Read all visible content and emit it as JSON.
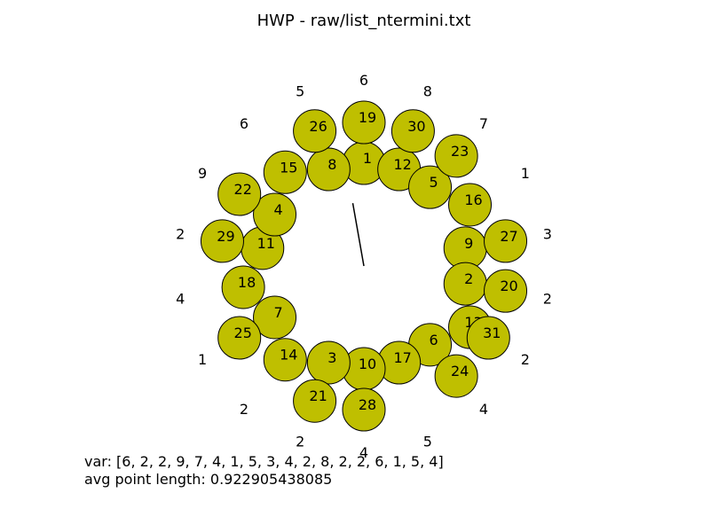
{
  "header": {
    "title": "HWP - raw/list_ntermini.txt"
  },
  "footer": {
    "var_line": "var: [6, 2, 2, 9, 7, 4, 1, 5, 3, 4, 2, 8, 2, 2, 6, 1, 5, 4]",
    "avg_line": "avg point length: 0.922905438085"
  },
  "chart_data": {
    "type": "scatter",
    "title": "HWP - raw/list_ntermini.txt",
    "marker_color": "#bfbf00",
    "layout": "circular ring of numbered nodes with outer ring of value labels and a central line segment",
    "nodes": [
      {
        "label": "1",
        "angle_deg": 90,
        "ring": "inner"
      },
      {
        "label": "12",
        "angle_deg": 70,
        "ring": "inner"
      },
      {
        "label": "5",
        "angle_deg": 50,
        "ring": "inner"
      },
      {
        "label": "9",
        "angle_deg": 10,
        "ring": "inner"
      },
      {
        "label": "2",
        "angle_deg": -10,
        "ring": "inner"
      },
      {
        "label": "6",
        "angle_deg": -50,
        "ring": "inner"
      },
      {
        "label": "17",
        "angle_deg": -70,
        "ring": "inner"
      },
      {
        "label": "10",
        "angle_deg": -90,
        "ring": "inner"
      },
      {
        "label": "3",
        "angle_deg": -110,
        "ring": "inner"
      },
      {
        "label": "7",
        "angle_deg": -150,
        "ring": "inner"
      },
      {
        "label": "11",
        "angle_deg": 170,
        "ring": "inner"
      },
      {
        "label": "4",
        "angle_deg": 150,
        "ring": "inner"
      },
      {
        "label": "8",
        "angle_deg": 110,
        "ring": "inner"
      },
      {
        "label": "16",
        "angle_deg": 30,
        "ring": "middle"
      },
      {
        "label": "13",
        "angle_deg": -30,
        "ring": "middle"
      },
      {
        "label": "14",
        "angle_deg": -130,
        "ring": "middle"
      },
      {
        "label": "18",
        "angle_deg": -170,
        "ring": "middle"
      },
      {
        "label": "15",
        "angle_deg": 130,
        "ring": "middle"
      },
      {
        "label": "19",
        "angle_deg": 90,
        "ring": "outer"
      },
      {
        "label": "30",
        "angle_deg": 70,
        "ring": "outer"
      },
      {
        "label": "23",
        "angle_deg": 50,
        "ring": "outer"
      },
      {
        "label": "27",
        "angle_deg": 10,
        "ring": "outer"
      },
      {
        "label": "20",
        "angle_deg": -10,
        "ring": "outer"
      },
      {
        "label": "31",
        "angle_deg": -30,
        "ring": "outer"
      },
      {
        "label": "24",
        "angle_deg": -50,
        "ring": "outer"
      },
      {
        "label": "28",
        "angle_deg": -90,
        "ring": "outer"
      },
      {
        "label": "21",
        "angle_deg": -110,
        "ring": "outer"
      },
      {
        "label": "25",
        "angle_deg": -150,
        "ring": "outer"
      },
      {
        "label": "29",
        "angle_deg": 170,
        "ring": "outer"
      },
      {
        "label": "22",
        "angle_deg": 150,
        "ring": "outer"
      },
      {
        "label": "26",
        "angle_deg": 110,
        "ring": "outer"
      }
    ],
    "outer_values": [
      {
        "label": "6",
        "angle_deg": 90
      },
      {
        "label": "8",
        "angle_deg": 70
      },
      {
        "label": "7",
        "angle_deg": 50
      },
      {
        "label": "1",
        "angle_deg": 30
      },
      {
        "label": "3",
        "angle_deg": 10
      },
      {
        "label": "2",
        "angle_deg": -10
      },
      {
        "label": "2",
        "angle_deg": -30
      },
      {
        "label": "4",
        "angle_deg": -50
      },
      {
        "label": "5",
        "angle_deg": -70
      },
      {
        "label": "4",
        "angle_deg": -90
      },
      {
        "label": "2",
        "angle_deg": -110
      },
      {
        "label": "2",
        "angle_deg": -130
      },
      {
        "label": "1",
        "angle_deg": -150
      },
      {
        "label": "4",
        "angle_deg": -170
      },
      {
        "label": "2",
        "angle_deg": 170
      },
      {
        "label": "9",
        "angle_deg": 150
      },
      {
        "label": "6",
        "angle_deg": 130
      },
      {
        "label": "5",
        "angle_deg": 110
      }
    ],
    "center_segment": {
      "from_angle_deg": 100,
      "length": 0.922905438085
    }
  }
}
